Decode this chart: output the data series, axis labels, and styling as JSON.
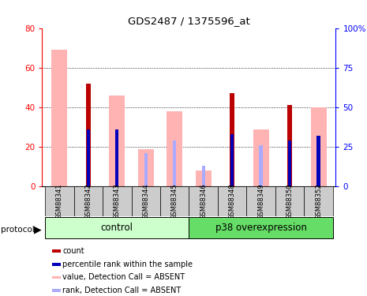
{
  "title": "GDS2487 / 1375596_at",
  "samples": [
    "GSM88341",
    "GSM88342",
    "GSM88343",
    "GSM88344",
    "GSM88345",
    "GSM88346",
    "GSM88348",
    "GSM88349",
    "GSM88350",
    "GSM88352"
  ],
  "absent_value": [
    69,
    0,
    46,
    19,
    38,
    8,
    0,
    29,
    0,
    40
  ],
  "count_value": [
    0,
    52,
    0,
    0,
    0,
    0,
    47,
    0,
    41,
    0
  ],
  "percentile_rank": [
    0,
    36,
    36,
    0,
    0,
    0,
    33,
    0,
    29,
    32
  ],
  "rank_absent": [
    0,
    0,
    0,
    21,
    29,
    13,
    0,
    26,
    0,
    0
  ],
  "ylim_left": [
    0,
    80
  ],
  "ylim_right": [
    0,
    100
  ],
  "yticks_left": [
    0,
    20,
    40,
    60,
    80
  ],
  "yticks_right": [
    0,
    25,
    50,
    75,
    100
  ],
  "absent_color": "#ffb3b3",
  "count_color": "#bb0000",
  "rank_color": "#0000bb",
  "rank_absent_color": "#aaaaff",
  "legend_items": [
    "count",
    "percentile rank within the sample",
    "value, Detection Call = ABSENT",
    "rank, Detection Call = ABSENT"
  ],
  "legend_colors": [
    "#bb0000",
    "#0000bb",
    "#ffb3b3",
    "#aaaaff"
  ],
  "control_color": "#ccffcc",
  "p38_color": "#66dd66",
  "tick_bg": "#cccccc",
  "n_control": 5,
  "n_p38": 5
}
